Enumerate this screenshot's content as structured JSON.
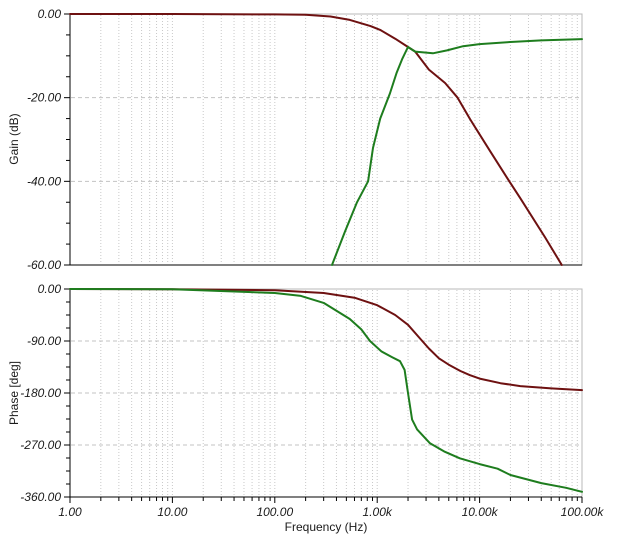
{
  "figure": {
    "background": "#ffffff",
    "text_color": "#1a1a1a",
    "grid_color": "#c9c9c9",
    "grid_dash_color": "#c3c3c3",
    "border_color": "#b8b8b8",
    "axis_color": "#000000"
  },
  "chart_data": [
    {
      "type": "line",
      "id": "gain",
      "title": "",
      "ylabel": "Gain (dB)",
      "xscale": "log",
      "xlim": [
        1,
        100000
      ],
      "ylim": [
        -60,
        0
      ],
      "grid": "on",
      "legend": "none",
      "yticks": [
        {
          "v": 0,
          "label": "0.00"
        },
        {
          "v": -20,
          "label": "-20.00"
        },
        {
          "v": -40,
          "label": "-40.00"
        },
        {
          "v": -60,
          "label": "-60.00"
        }
      ],
      "grid_y": [
        -20,
        -40
      ],
      "y_minor_step": 5,
      "series": [
        {
          "name": "dark-red-gain",
          "color": "#6e1111",
          "points": [
            [
              1,
              0
            ],
            [
              10,
              0
            ],
            [
              100,
              -0.1
            ],
            [
              200,
              -0.2
            ],
            [
              350,
              -0.6
            ],
            [
              540,
              -1.4
            ],
            [
              860,
              -2.9
            ],
            [
              1070,
              -3.8
            ],
            [
              1500,
              -5.9
            ],
            [
              2000,
              -7.9
            ],
            [
              2350,
              -9.0
            ],
            [
              3200,
              -13.3
            ],
            [
              4600,
              -16.5
            ],
            [
              6100,
              -20
            ],
            [
              8100,
              -25.2
            ],
            [
              12600,
              -32.7
            ],
            [
              19500,
              -40
            ],
            [
              24900,
              -44
            ],
            [
              43600,
              -53.4
            ],
            [
              63500,
              -60
            ]
          ]
        },
        {
          "name": "green-gain",
          "color": "#1e7d1e",
          "points": [
            [
              362,
              -60
            ],
            [
              485,
              -52
            ],
            [
              635,
              -45
            ],
            [
              815,
              -40
            ],
            [
              910,
              -32
            ],
            [
              1070,
              -25
            ],
            [
              1330,
              -19
            ],
            [
              1550,
              -14
            ],
            [
              1750,
              -10.8
            ],
            [
              2000,
              -7.9
            ],
            [
              2350,
              -9.0
            ],
            [
              3500,
              -9.4
            ],
            [
              4800,
              -8.7
            ],
            [
              6900,
              -7.7
            ],
            [
              10000,
              -7.2
            ],
            [
              20000,
              -6.7
            ],
            [
              40000,
              -6.3
            ],
            [
              100000,
              -6.0
            ]
          ]
        }
      ]
    },
    {
      "type": "line",
      "id": "phase",
      "title": "",
      "ylabel": "Phase [deg]",
      "xlabel": "Frequency (Hz)",
      "xscale": "log",
      "xlim": [
        1,
        100000
      ],
      "ylim": [
        -360,
        0
      ],
      "grid": "on",
      "legend": "none",
      "yticks": [
        {
          "v": 0,
          "label": "0.00"
        },
        {
          "v": -90,
          "label": "-90.00"
        },
        {
          "v": -180,
          "label": "-180.00"
        },
        {
          "v": -270,
          "label": "-270.00"
        },
        {
          "v": -360,
          "label": "-360.00"
        }
      ],
      "grid_y": [
        -90,
        -180,
        -270
      ],
      "y_minor_step": 22.5,
      "xticks": [
        {
          "v": 1,
          "label": "1.00"
        },
        {
          "v": 10,
          "label": "10.00"
        },
        {
          "v": 100,
          "label": "100.00"
        },
        {
          "v": 1000,
          "label": "1.00k"
        },
        {
          "v": 10000,
          "label": "10.00k"
        },
        {
          "v": 100000,
          "label": "100.00k"
        }
      ],
      "series": [
        {
          "name": "dark-red-phase",
          "color": "#6e1111",
          "points": [
            [
              1,
              0
            ],
            [
              10,
              -0.3
            ],
            [
              100,
              -2
            ],
            [
              300,
              -7
            ],
            [
              600,
              -15
            ],
            [
              1000,
              -28
            ],
            [
              1500,
              -45
            ],
            [
              2000,
              -62
            ],
            [
              2600,
              -85
            ],
            [
              3200,
              -103
            ],
            [
              4000,
              -120
            ],
            [
              5000,
              -131
            ],
            [
              6500,
              -142
            ],
            [
              8000,
              -149
            ],
            [
              10000,
              -155
            ],
            [
              16000,
              -163
            ],
            [
              25000,
              -168
            ],
            [
              50000,
              -172
            ],
            [
              100000,
              -175
            ]
          ]
        },
        {
          "name": "green-phase",
          "color": "#1e7d1e",
          "points": [
            [
              1,
              0
            ],
            [
              10,
              -0.5
            ],
            [
              100,
              -7
            ],
            [
              180,
              -12
            ],
            [
              300,
              -24
            ],
            [
              540,
              -52
            ],
            [
              700,
              -70
            ],
            [
              850,
              -90
            ],
            [
              1100,
              -108
            ],
            [
              1400,
              -118
            ],
            [
              1670,
              -125
            ],
            [
              1850,
              -140
            ],
            [
              2000,
              -180
            ],
            [
              2190,
              -226
            ],
            [
              2450,
              -243
            ],
            [
              3280,
              -267
            ],
            [
              4500,
              -281
            ],
            [
              6400,
              -293
            ],
            [
              10000,
              -303
            ],
            [
              15000,
              -311
            ],
            [
              20000,
              -322
            ],
            [
              40000,
              -336
            ],
            [
              70000,
              -344
            ],
            [
              100000,
              -351
            ]
          ]
        }
      ]
    }
  ]
}
